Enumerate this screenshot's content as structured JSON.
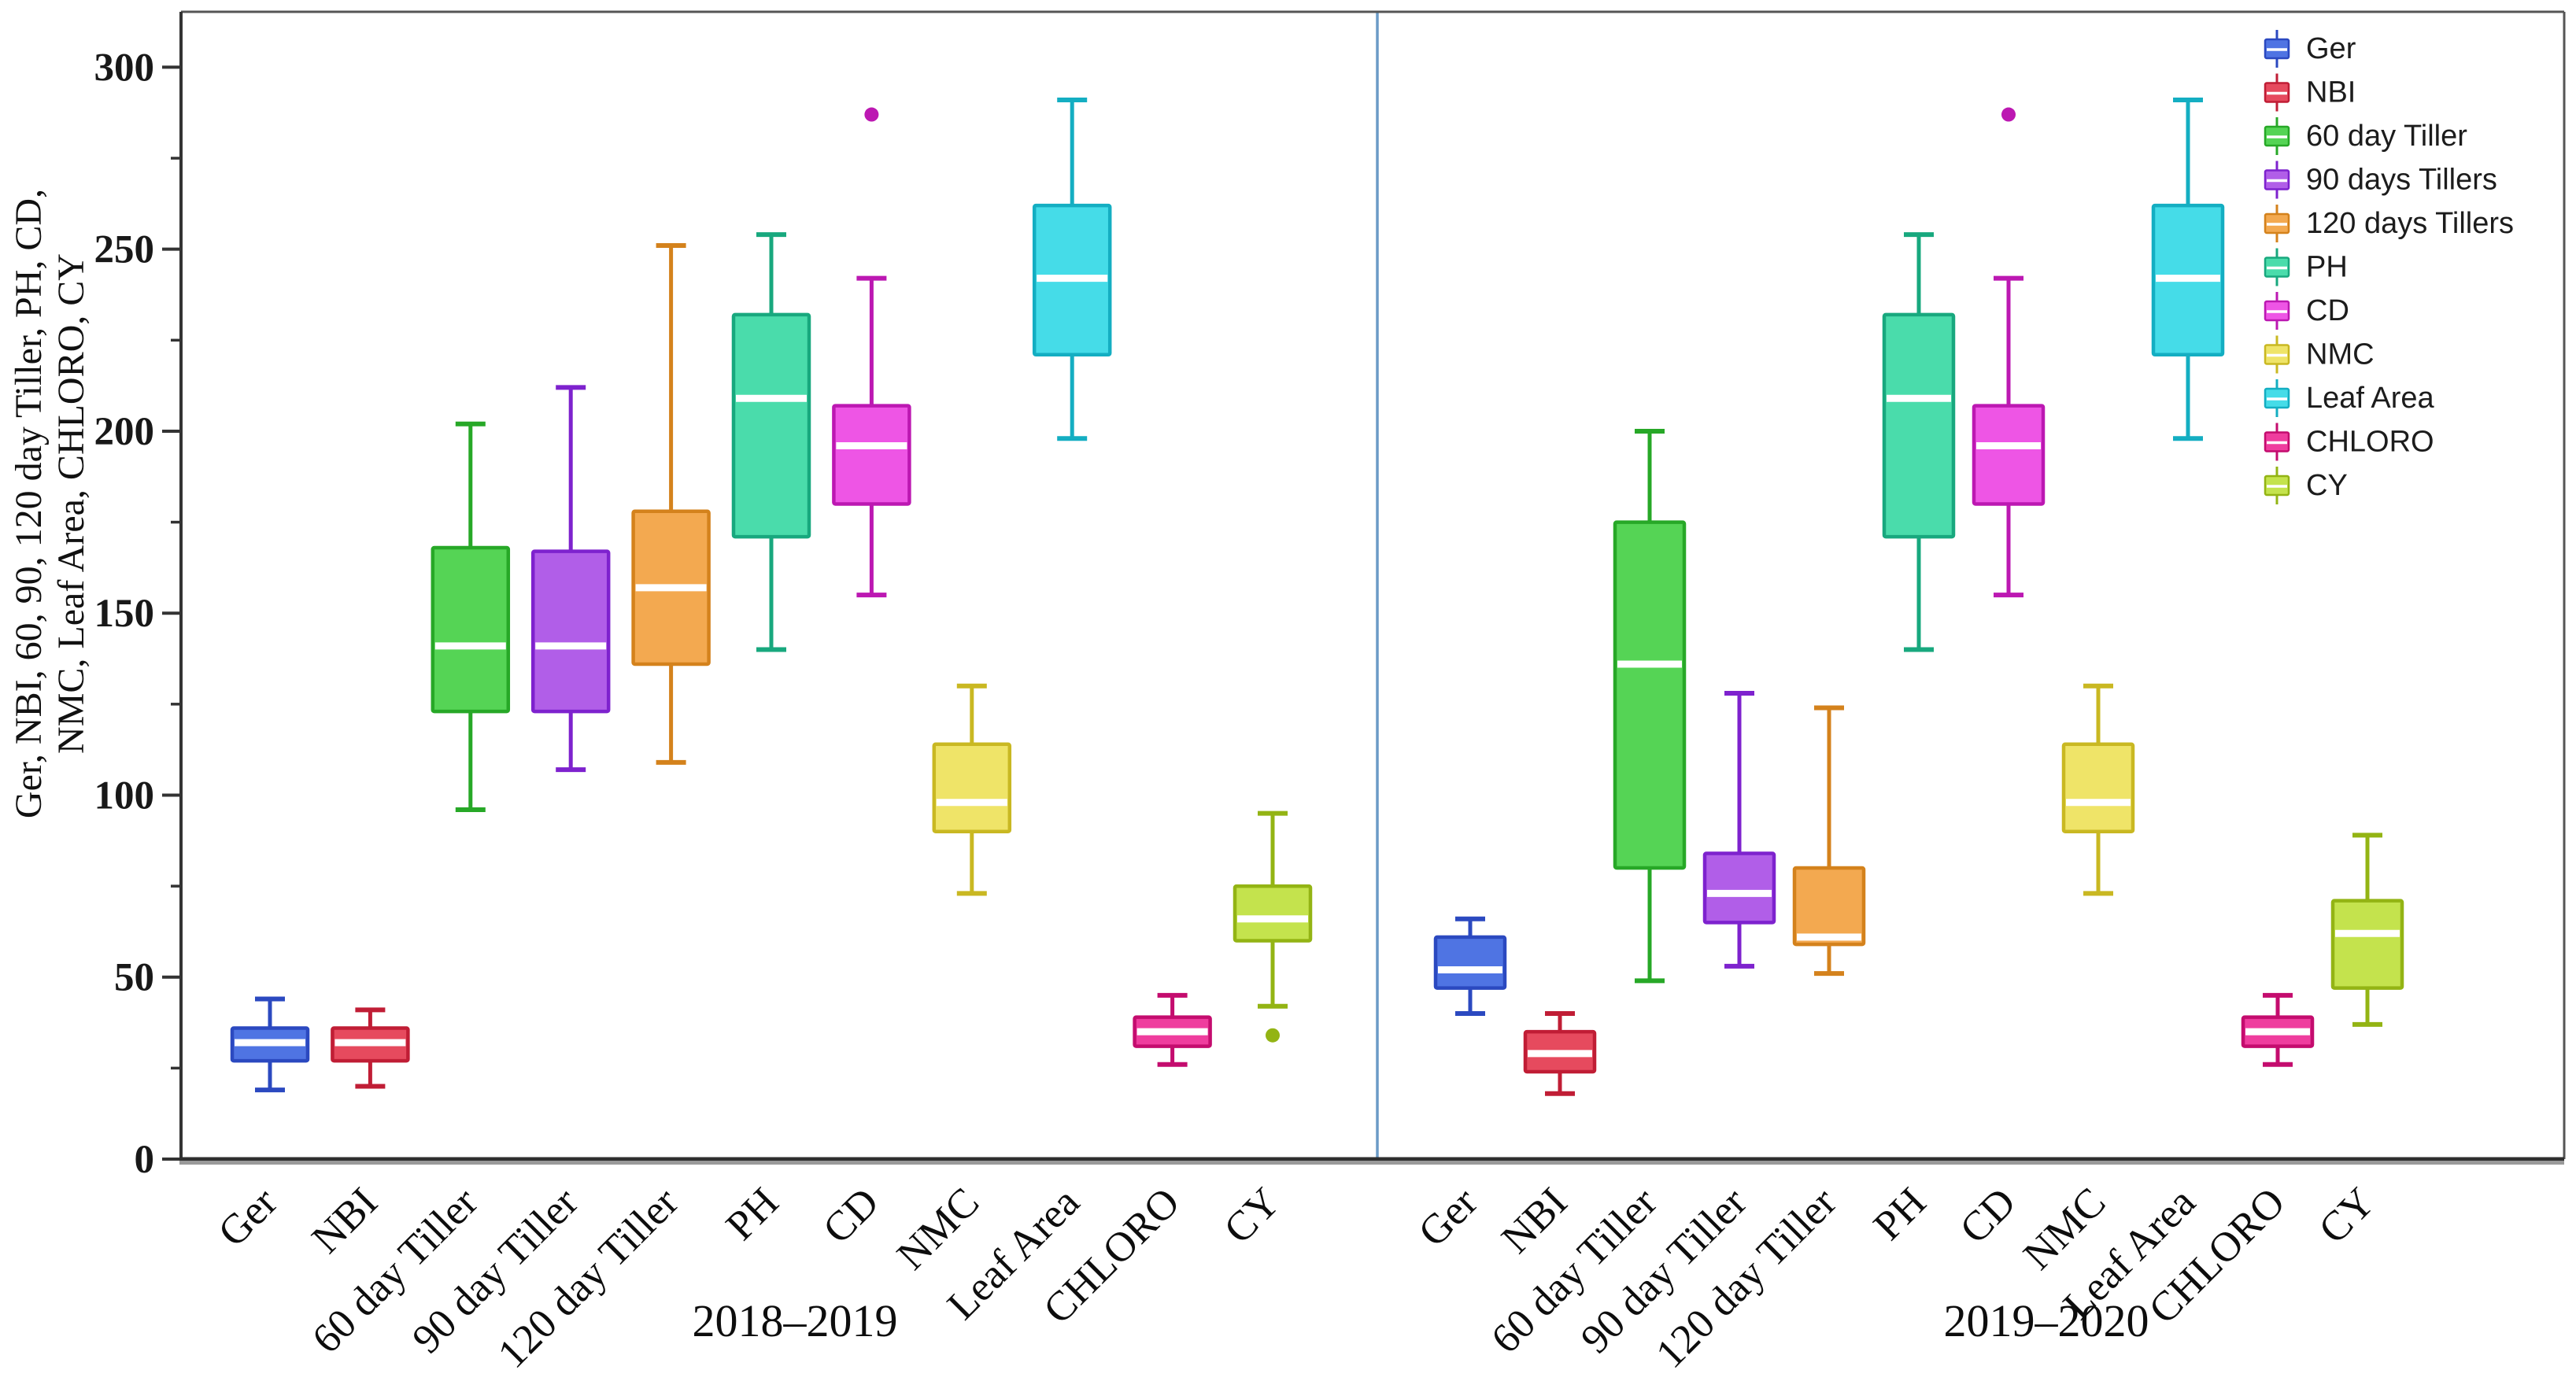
{
  "chart_data": {
    "type": "boxplot",
    "figure_kind": "grouped two-panel box plot",
    "ylabel_lines": [
      "Ger, NBI, 60, 90, 120 day Tiller, PH, CD,",
      "NMC, Leaf Area, CHLORO, CY"
    ],
    "ylim": [
      0,
      315
    ],
    "ytick_values": [
      0,
      50,
      100,
      150,
      200,
      250,
      300
    ],
    "ytick_labels": [
      "0",
      "50",
      "100",
      "150",
      "200",
      "250",
      "300"
    ],
    "yticks_minor": [
      25,
      75,
      125,
      175,
      225,
      275
    ],
    "grid": false,
    "divider_color": "#6b9bc7",
    "categories": [
      "Ger",
      "NBI",
      "60 day Tiller",
      "90 day Tiller",
      "120 day Tiller",
      "PH",
      "CD",
      "NMC",
      "Leaf Area",
      "CHLORO",
      "CY"
    ],
    "series_colors": [
      {
        "name": "Ger",
        "fill": "#4f74e3",
        "border": "#2b49c0"
      },
      {
        "name": "NBI",
        "fill": "#e64a5e",
        "border": "#c01d35"
      },
      {
        "name": "60 day Tiller",
        "fill": "#55d455",
        "border": "#27a827"
      },
      {
        "name": "90 days Tillers",
        "fill": "#b15ee8",
        "border": "#7e22ce"
      },
      {
        "name": "120 days Tillers",
        "fill": "#f3a950",
        "border": "#d4821c"
      },
      {
        "name": "PH",
        "fill": "#4adcab",
        "border": "#18a87e"
      },
      {
        "name": "CD",
        "fill": "#ee55e5",
        "border": "#bc18b2"
      },
      {
        "name": "NMC",
        "fill": "#efe468",
        "border": "#c9b822"
      },
      {
        "name": "Leaf Area",
        "fill": "#45dce8",
        "border": "#14aec2"
      },
      {
        "name": "CHLORO",
        "fill": "#ef3d9e",
        "border": "#c40c6e"
      },
      {
        "name": "CY",
        "fill": "#c4e34d",
        "border": "#93b414"
      }
    ],
    "legend": {
      "position": "top-right",
      "entries": [
        "Ger",
        "NBI",
        "60 day Tiller",
        "90 days Tillers",
        "120 days Tillers",
        "PH",
        "CD",
        "NMC",
        "Leaf Area",
        "CHLORO",
        "CY"
      ]
    },
    "panels": [
      {
        "title": "2018–2019",
        "boxes": [
          {
            "category": "Ger",
            "whisker_low": 19,
            "q1": 27,
            "median": 32,
            "q3": 36,
            "whisker_high": 44,
            "outliers": []
          },
          {
            "category": "NBI",
            "whisker_low": 20,
            "q1": 27,
            "median": 32,
            "q3": 36,
            "whisker_high": 41,
            "outliers": []
          },
          {
            "category": "60 day Tiller",
            "whisker_low": 96,
            "q1": 123,
            "median": 141,
            "q3": 168,
            "whisker_high": 202,
            "outliers": []
          },
          {
            "category": "90 day Tiller",
            "whisker_low": 107,
            "q1": 123,
            "median": 141,
            "q3": 167,
            "whisker_high": 212,
            "outliers": []
          },
          {
            "category": "120 day Tiller",
            "whisker_low": 109,
            "q1": 136,
            "median": 157,
            "q3": 178,
            "whisker_high": 251,
            "outliers": []
          },
          {
            "category": "PH",
            "whisker_low": 140,
            "q1": 171,
            "median": 209,
            "q3": 232,
            "whisker_high": 254,
            "outliers": []
          },
          {
            "category": "CD",
            "whisker_low": 155,
            "q1": 180,
            "median": 196,
            "q3": 207,
            "whisker_high": 242,
            "outliers": [
              287
            ]
          },
          {
            "category": "NMC",
            "whisker_low": 73,
            "q1": 90,
            "median": 98,
            "q3": 114,
            "whisker_high": 130,
            "outliers": []
          },
          {
            "category": "Leaf Area",
            "whisker_low": 198,
            "q1": 221,
            "median": 242,
            "q3": 262,
            "whisker_high": 291,
            "outliers": []
          },
          {
            "category": "CHLORO",
            "whisker_low": 26,
            "q1": 31,
            "median": 35,
            "q3": 39,
            "whisker_high": 45,
            "outliers": []
          },
          {
            "category": "CY",
            "whisker_low": 42,
            "q1": 60,
            "median": 66,
            "q3": 75,
            "whisker_high": 95,
            "outliers": [
              34
            ]
          }
        ]
      },
      {
        "title": "2019–2020",
        "boxes": [
          {
            "category": "Ger",
            "whisker_low": 40,
            "q1": 47,
            "median": 52,
            "q3": 61,
            "whisker_high": 66,
            "outliers": []
          },
          {
            "category": "NBI",
            "whisker_low": 18,
            "q1": 24,
            "median": 29,
            "q3": 35,
            "whisker_high": 40,
            "outliers": []
          },
          {
            "category": "60 day Tiller",
            "whisker_low": 49,
            "q1": 80,
            "median": 136,
            "q3": 175,
            "whisker_high": 200,
            "outliers": []
          },
          {
            "category": "90 day Tiller",
            "whisker_low": 53,
            "q1": 65,
            "median": 73,
            "q3": 84,
            "whisker_high": 128,
            "outliers": []
          },
          {
            "category": "120 day Tiller",
            "whisker_low": 51,
            "q1": 59,
            "median": 61,
            "q3": 80,
            "whisker_high": 124,
            "outliers": []
          },
          {
            "category": "PH",
            "whisker_low": 140,
            "q1": 171,
            "median": 209,
            "q3": 232,
            "whisker_high": 254,
            "outliers": []
          },
          {
            "category": "CD",
            "whisker_low": 155,
            "q1": 180,
            "median": 196,
            "q3": 207,
            "whisker_high": 242,
            "outliers": [
              287
            ]
          },
          {
            "category": "NMC",
            "whisker_low": 73,
            "q1": 90,
            "median": 98,
            "q3": 114,
            "whisker_high": 130,
            "outliers": []
          },
          {
            "category": "Leaf Area",
            "whisker_low": 198,
            "q1": 221,
            "median": 242,
            "q3": 262,
            "whisker_high": 291,
            "outliers": []
          },
          {
            "category": "CHLORO",
            "whisker_low": 26,
            "q1": 31,
            "median": 35,
            "q3": 39,
            "whisker_high": 45,
            "outliers": []
          },
          {
            "category": "CY",
            "whisker_low": 37,
            "q1": 47,
            "median": 62,
            "q3": 71,
            "whisker_high": 89,
            "outliers": []
          }
        ]
      }
    ]
  }
}
